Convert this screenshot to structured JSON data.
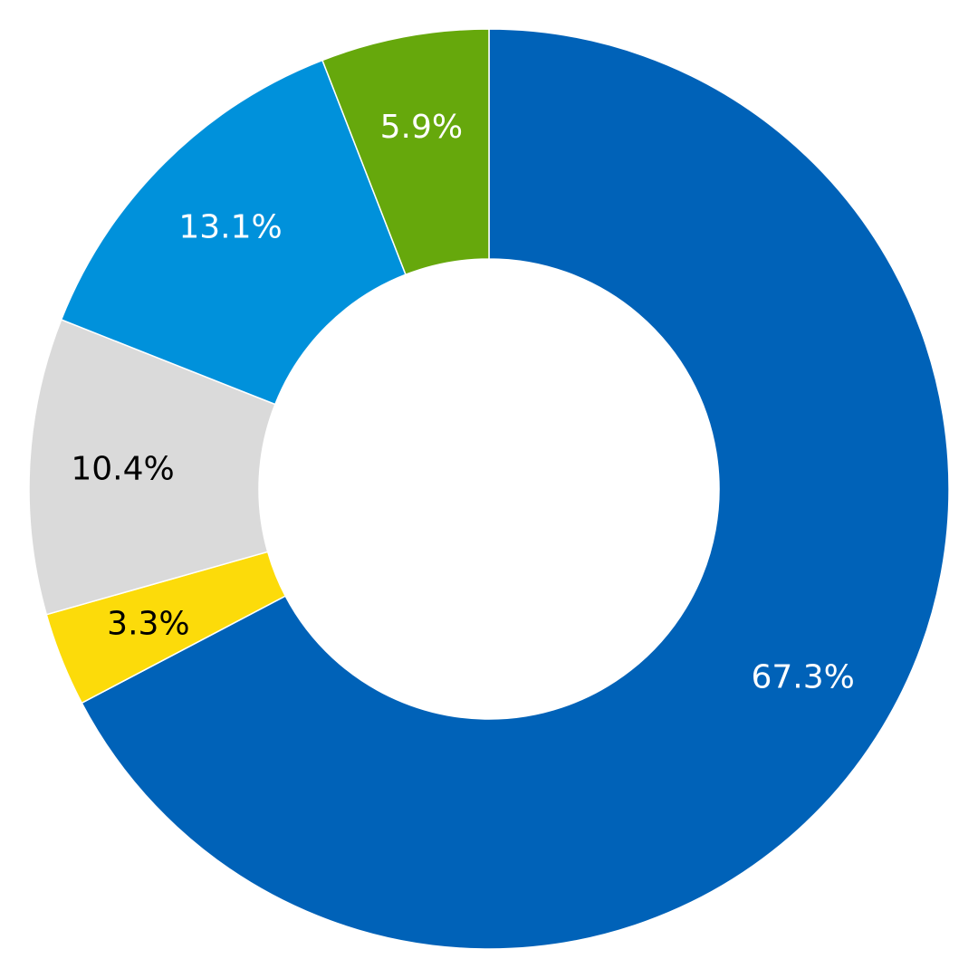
{
  "chart_data": {
    "type": "pie",
    "style": "donut",
    "slices": [
      {
        "label": "67.3%",
        "value": 67.3,
        "color": "#0062B8",
        "label_color": "#ffffff"
      },
      {
        "label": "3.3%",
        "value": 3.3,
        "color": "#FCDB0A",
        "label_color": "#000000"
      },
      {
        "label": "10.4%",
        "value": 10.4,
        "color": "#DADADA",
        "label_color": "#000000"
      },
      {
        "label": "13.1%",
        "value": 13.1,
        "color": "#0091DB",
        "label_color": "#ffffff"
      },
      {
        "label": "5.9%",
        "value": 5.9,
        "color": "#66A80C",
        "label_color": "#ffffff"
      }
    ],
    "start_angle": "12 o'clock",
    "direction": "clockwise",
    "legend": "none",
    "title": ""
  }
}
